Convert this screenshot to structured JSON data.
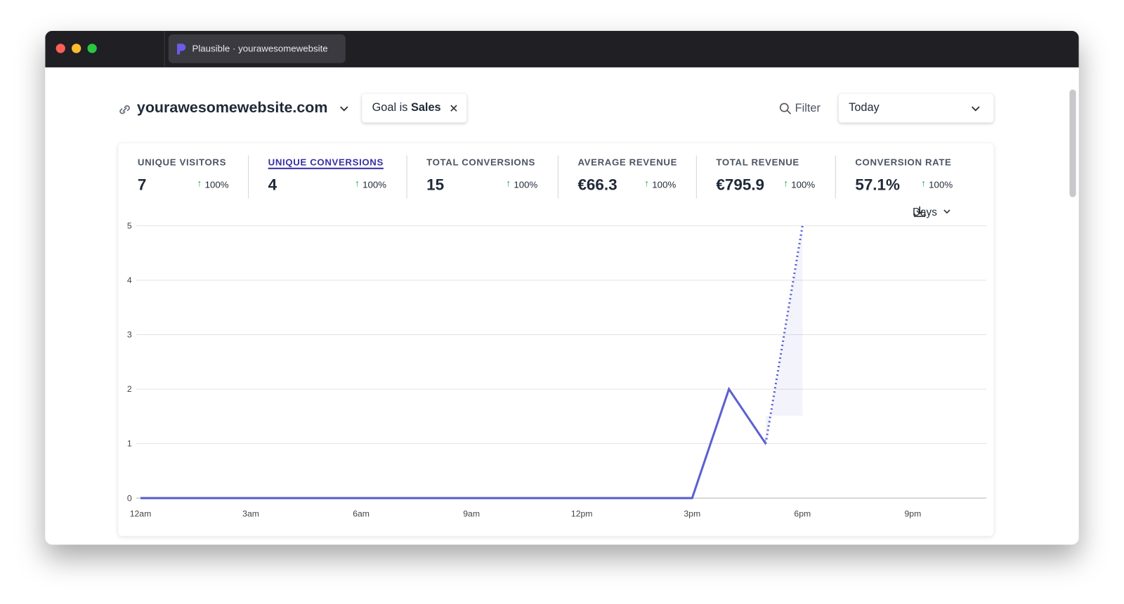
{
  "tab": {
    "title": "Plausible · yourawesomewebsite"
  },
  "header": {
    "site": "yourawesomewebsite.com",
    "filter": {
      "prefix": "Goal is",
      "value": "Sales"
    },
    "filter_button": "Filter",
    "period": "Today"
  },
  "stats": [
    {
      "label": "UNIQUE VISITORS",
      "value": "7",
      "change": "100%"
    },
    {
      "label": "UNIQUE CONVERSIONS",
      "value": "4",
      "change": "100%"
    },
    {
      "label": "TOTAL CONVERSIONS",
      "value": "15",
      "change": "100%"
    },
    {
      "label": "AVERAGE REVENUE",
      "value": "€66.3",
      "change": "100%"
    },
    {
      "label": "TOTAL REVENUE",
      "value": "€795.9",
      "change": "100%"
    },
    {
      "label": "CONVERSION RATE",
      "value": "57.1%",
      "change": "100%"
    }
  ],
  "interval": "Days",
  "chart_data": {
    "type": "line",
    "x": [
      0,
      1,
      2,
      3,
      4,
      5,
      6,
      7,
      8,
      9,
      10,
      11,
      12,
      13,
      14,
      15,
      16,
      17,
      18
    ],
    "values": [
      0,
      0,
      0,
      0,
      0,
      0,
      0,
      0,
      0,
      0,
      0,
      0,
      0,
      0,
      0,
      0,
      2,
      1,
      5
    ],
    "color": "#5b61d1",
    "incomplete_last": true,
    "xlim": [
      0,
      23
    ],
    "xticks": [
      {
        "value": 0,
        "label": "12am"
      },
      {
        "value": 3,
        "label": "3am"
      },
      {
        "value": 6,
        "label": "6am"
      },
      {
        "value": 9,
        "label": "9am"
      },
      {
        "value": 12,
        "label": "12pm"
      },
      {
        "value": 15,
        "label": "3pm"
      },
      {
        "value": 18,
        "label": "6pm"
      },
      {
        "value": 21,
        "label": "9pm"
      }
    ],
    "ylim": [
      0,
      5
    ],
    "yticks": [
      0,
      1,
      2,
      3,
      4,
      5
    ],
    "grid": true
  }
}
